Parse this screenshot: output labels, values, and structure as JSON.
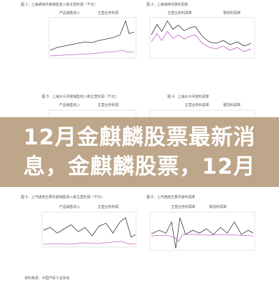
{
  "banner": {
    "lines": [
      "12月金麒麟股票最新消",
      "息，金麒麟股票，12月"
    ]
  },
  "panels": [
    {
      "title": "图 1：上海通用月度销售收入和主营利润（千元）",
      "legend": [
        "产品销售收入",
        "主营业务利润"
      ]
    },
    {
      "title": "图 2：上海通用月度利润率",
      "legend": [
        "主营业务利润率",
        "税前利润率"
      ]
    },
    {
      "title": "图 3：上海大众月度销售收入和主营利润（千元）",
      "legend": [
        "产品销售收入",
        "主营业务利润"
      ]
    },
    {
      "title": "图 4：上海大众月度利润率",
      "legend": [
        "主营业务利润率",
        "税前利润率"
      ]
    },
    {
      "title": "图 5：上汽通用五菱月度销售收入和主营利润（千元）",
      "legend": [
        "产品销售收入",
        "主营业务利润"
      ]
    },
    {
      "title": "图 6：上汽通用五菱月度利润率",
      "legend": [
        "主营业务利润率",
        "税前利润率"
      ]
    }
  ],
  "source": "资料来源：中国汽车工业协会"
}
